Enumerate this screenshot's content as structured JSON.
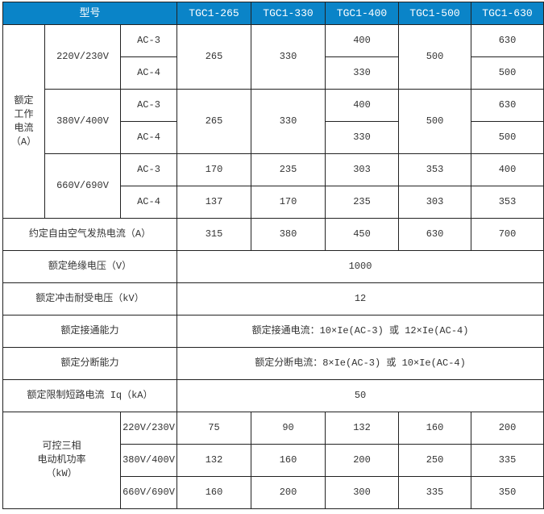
{
  "header": {
    "model_label": "型号",
    "models": [
      "TGC1-265",
      "TGC1-330",
      "TGC1-400",
      "TGC1-500",
      "TGC1-630"
    ]
  },
  "rated_current": {
    "label_lines": [
      "额定",
      "工作",
      "电流",
      "（A）"
    ],
    "groups": [
      {
        "voltage": "220V/230V",
        "rows": [
          {
            "cat": "AC-3",
            "vals": [
              "265",
              "330",
              "400",
              "500",
              "630"
            ]
          },
          {
            "cat": "AC-4",
            "vals": [
              "330",
              "500"
            ]
          }
        ]
      },
      {
        "voltage": "380V/400V",
        "rows": [
          {
            "cat": "AC-3",
            "vals": [
              "265",
              "330",
              "400",
              "500",
              "630"
            ]
          },
          {
            "cat": "AC-4",
            "vals": [
              "330",
              "500"
            ]
          }
        ]
      },
      {
        "voltage": "660V/690V",
        "rows": [
          {
            "cat": "AC-3",
            "vals": [
              "170",
              "235",
              "303",
              "353",
              "400"
            ]
          },
          {
            "cat": "AC-4",
            "vals": [
              "137",
              "170",
              "235",
              "303",
              "353"
            ]
          }
        ]
      }
    ]
  },
  "thermal": {
    "label": "约定自由空气发热电流（A）",
    "vals": [
      "315",
      "380",
      "450",
      "630",
      "700"
    ]
  },
  "single_rows": [
    {
      "label": "额定绝缘电压（V）",
      "value": "1000"
    },
    {
      "label": "额定冲击耐受电压（kV）",
      "value": "12"
    },
    {
      "label": "额定接通能力",
      "value": "额定接通电流：10×Ie(AC-3) 或 12×Ie(AC-4)"
    },
    {
      "label": "额定分断能力",
      "value": "额定分断电流：8×Ie(AC-3) 或 10×Ie(AC-4)"
    },
    {
      "label": "额定限制短路电流 Iq（kA）",
      "value": "50"
    }
  ],
  "power": {
    "label_lines": [
      "可控三相",
      "电动机功率",
      "（kW）"
    ],
    "rows": [
      {
        "voltage": "220V/230V",
        "vals": [
          "75",
          "90",
          "132",
          "160",
          "200"
        ]
      },
      {
        "voltage": "380V/400V",
        "vals": [
          "132",
          "160",
          "200",
          "250",
          "335"
        ]
      },
      {
        "voltage": "660V/690V",
        "vals": [
          "160",
          "200",
          "300",
          "335",
          "350"
        ]
      }
    ]
  }
}
